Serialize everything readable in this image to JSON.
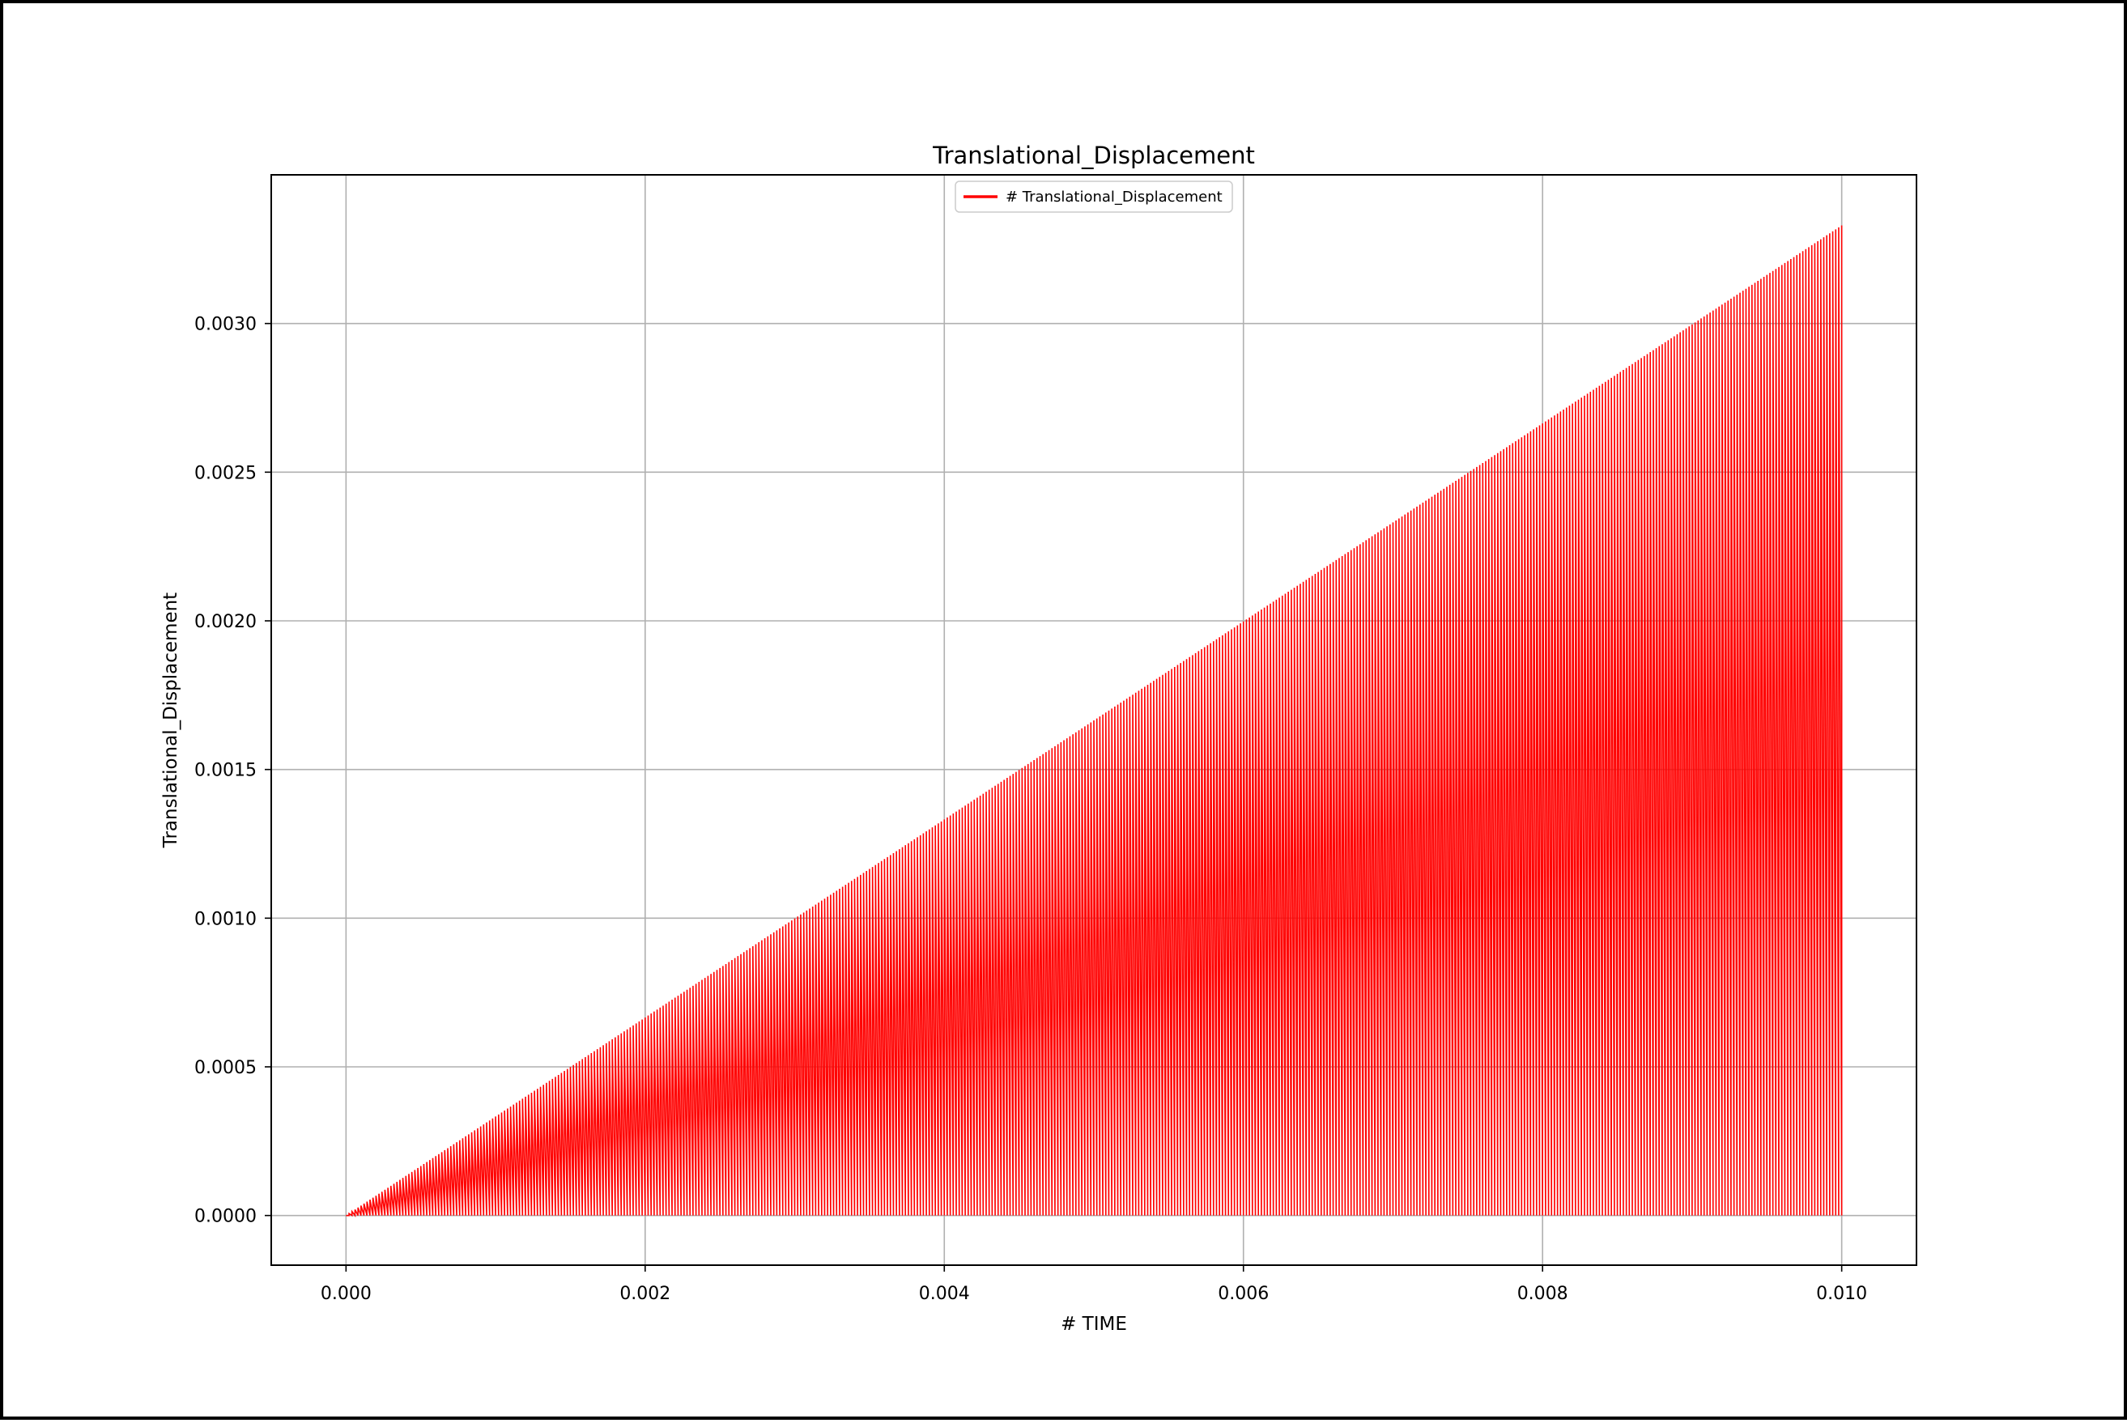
{
  "chart_data": {
    "type": "line",
    "title": "Translational_Displacement",
    "xlabel": "# TIME",
    "ylabel": "Translational_Displacement",
    "xlim": [
      -0.0005,
      0.0105
    ],
    "ylim": [
      -0.000167,
      0.0035
    ],
    "xticks": [
      0.0,
      0.002,
      0.004,
      0.006,
      0.008,
      0.01
    ],
    "xtick_labels": [
      "0.000",
      "0.002",
      "0.004",
      "0.006",
      "0.008",
      "0.010"
    ],
    "yticks": [
      0.0,
      0.0005,
      0.001,
      0.0015,
      0.002,
      0.0025,
      0.003
    ],
    "ytick_labels": [
      "0.0000",
      "0.0005",
      "0.0010",
      "0.0015",
      "0.0020",
      "0.0025",
      "0.0030"
    ],
    "grid": true,
    "legend": {
      "placement": "upper-center",
      "entries": [
        "# Translational_Displacement"
      ]
    },
    "series": [
      {
        "name": "# Translational_Displacement",
        "color": "#ff0000",
        "pattern": "oscillates between 0 and an envelope rising linearly",
        "x_start": 0.0,
        "x_end": 0.01,
        "envelope_start": 0.0,
        "envelope_end": 0.00333,
        "floor": 0.0,
        "cycles": 500
      }
    ]
  }
}
